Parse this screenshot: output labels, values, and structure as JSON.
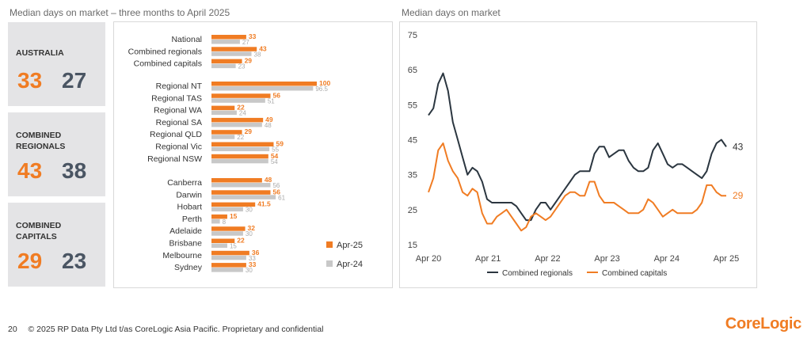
{
  "left_title": "Median days on market – three months to April 2025",
  "right_title": "Median days on market",
  "kpis": [
    {
      "label": "AUSTRALIA",
      "apr25": 33,
      "apr24": 27
    },
    {
      "label": "COMBINED\nREGIONALS",
      "apr25": 43,
      "apr24": 38
    },
    {
      "label": "COMBINED\nCAPITALS",
      "apr25": 29,
      "apr24": 23
    }
  ],
  "colors": {
    "apr25": "#f07c23",
    "apr24": "#c8c8c8",
    "regionals": "#2b3640",
    "capitals": "#f07c23"
  },
  "footer": {
    "page": "20",
    "text": "© 2025 RP Data Pty Ltd t/as CoreLogic Asia Pacific. Proprietary and confidential"
  },
  "brand": "CoreLogic",
  "chart_data": [
    {
      "type": "bar",
      "orientation": "horizontal",
      "legend": [
        "Apr-25",
        "Apr-24"
      ],
      "legend_position": "right",
      "groups": [
        {
          "categories": [
            "National",
            "Combined regionals",
            "Combined capitals"
          ],
          "apr25": [
            33,
            43,
            29
          ],
          "apr24": [
            27,
            38,
            23
          ]
        },
        {
          "categories": [
            "Regional NT",
            "Regional TAS",
            "Regional WA",
            "Regional SA",
            "Regional QLD",
            "Regional Vic",
            "Regional NSW"
          ],
          "apr25": [
            100,
            56,
            22,
            49,
            29,
            59,
            54
          ],
          "apr24": [
            96.5,
            51,
            24,
            48,
            22,
            55,
            54
          ]
        },
        {
          "categories": [
            "Canberra",
            "Darwin",
            "Hobart",
            "Perth",
            "Adelaide",
            "Brisbane",
            "Melbourne",
            "Sydney"
          ],
          "apr25": [
            48,
            56,
            41.5,
            15,
            32,
            22,
            36,
            33
          ],
          "apr24": [
            56,
            61,
            30,
            8,
            30,
            15,
            33,
            30
          ]
        }
      ],
      "xlim": [
        0,
        100
      ]
    },
    {
      "type": "line",
      "x_ticks": [
        "Apr 20",
        "Apr 21",
        "Apr 22",
        "Apr 23",
        "Apr 24",
        "Apr 25"
      ],
      "y_ticks": [
        15,
        25,
        35,
        45,
        55,
        65,
        75
      ],
      "ylim": [
        15,
        75
      ],
      "grid": false,
      "legend_position": "bottom",
      "series": [
        {
          "name": "Combined regionals",
          "end_label": "43",
          "values": [
            52,
            54,
            61,
            64,
            59,
            50,
            45,
            40,
            35,
            37,
            36,
            33,
            28,
            27,
            27,
            27,
            27,
            27,
            26,
            24,
            22,
            22,
            25,
            27,
            27,
            25,
            27,
            29,
            31,
            33,
            35,
            36,
            36,
            36,
            41,
            43,
            43,
            40,
            41,
            42,
            42,
            39,
            37,
            36,
            36,
            37,
            42,
            44,
            41,
            38,
            37,
            38,
            38,
            37,
            36,
            35,
            34,
            36,
            41,
            44,
            45,
            43
          ]
        },
        {
          "name": "Combined capitals",
          "end_label": "29",
          "values": [
            30,
            34,
            42,
            44,
            39,
            36,
            34,
            30,
            29,
            31,
            30,
            24,
            21,
            21,
            23,
            24,
            25,
            23,
            21,
            19,
            20,
            23,
            24,
            23,
            22,
            23,
            25,
            27,
            29,
            30,
            30,
            29,
            29,
            33,
            33,
            29,
            27,
            27,
            27,
            26,
            25,
            24,
            24,
            24,
            25,
            28,
            27,
            25,
            23,
            24,
            25,
            24,
            24,
            24,
            24,
            25,
            27,
            32,
            32,
            30,
            29,
            29
          ]
        }
      ]
    }
  ]
}
